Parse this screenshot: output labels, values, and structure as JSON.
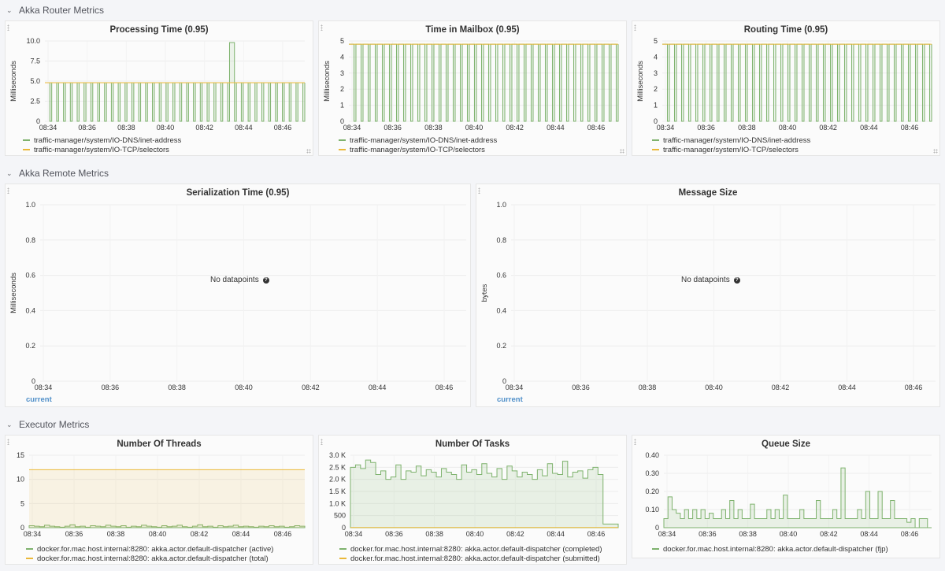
{
  "rows": [
    {
      "title": "Akka Router Metrics"
    },
    {
      "title": "Akka Remote Metrics"
    },
    {
      "title": "Executor Metrics"
    }
  ],
  "colors": {
    "green": "#7eb26d",
    "yellow": "#eab839",
    "link": "#4f8fc9"
  },
  "panels": {
    "processing": {
      "title": "Processing Time (0.95)",
      "ylabel": "Milliseconds",
      "legend": [
        "traffic-manager/system/IO-DNS/inet-address",
        "traffic-manager/system/IO-TCP/selectors"
      ]
    },
    "mailbox": {
      "title": "Time in Mailbox (0.95)",
      "ylabel": "Milliseconds",
      "legend": [
        "traffic-manager/system/IO-DNS/inet-address",
        "traffic-manager/system/IO-TCP/selectors"
      ]
    },
    "routing": {
      "title": "Routing Time (0.95)",
      "ylabel": "Milliseconds",
      "legend": [
        "traffic-manager/system/IO-DNS/inet-address",
        "traffic-manager/system/IO-TCP/selectors"
      ]
    },
    "serialization": {
      "title": "Serialization Time (0.95)",
      "ylabel": "Milliseconds",
      "no_data": "No datapoints",
      "current": "current"
    },
    "message_size": {
      "title": "Message Size",
      "ylabel": "bytes",
      "no_data": "No datapoints",
      "current": "current"
    },
    "threads": {
      "title": "Number Of Threads",
      "legend": [
        "docker.for.mac.host.internal:8280: akka.actor.default-dispatcher (active)",
        "docker.for.mac.host.internal:8280: akka.actor.default-dispatcher (total)"
      ]
    },
    "tasks": {
      "title": "Number Of Tasks",
      "legend": [
        "docker.for.mac.host.internal:8280: akka.actor.default-dispatcher (completed)",
        "docker.for.mac.host.internal:8280: akka.actor.default-dispatcher (submitted)"
      ]
    },
    "queue": {
      "title": "Queue Size",
      "legend": [
        "docker.for.mac.host.internal:8280: akka.actor.default-dispatcher (fjp)"
      ]
    }
  },
  "chart_data": [
    {
      "id": "processing",
      "type": "line",
      "x_ticks": [
        "08:34",
        "08:36",
        "08:38",
        "08:40",
        "08:42",
        "08:44",
        "08:46"
      ],
      "y_ticks": [
        "0",
        "2.5",
        "5.0",
        "7.5",
        "10.0"
      ],
      "ylim": [
        0,
        10
      ],
      "series": [
        {
          "name": "traffic-manager/system/IO-DNS/inet-address",
          "pattern": "square-wave",
          "high": 4.8,
          "low": 0,
          "periods": 38,
          "spike": {
            "period": 27,
            "value": 9.8
          }
        },
        {
          "name": "traffic-manager/system/IO-TCP/selectors",
          "pattern": "flat",
          "value": 4.8
        }
      ]
    },
    {
      "id": "mailbox",
      "type": "line",
      "x_ticks": [
        "08:34",
        "08:36",
        "08:38",
        "08:40",
        "08:42",
        "08:44",
        "08:46"
      ],
      "y_ticks": [
        "0",
        "1",
        "2",
        "3",
        "4",
        "5"
      ],
      "ylim": [
        0,
        5
      ],
      "series": [
        {
          "name": "traffic-manager/system/IO-DNS/inet-address",
          "pattern": "square-wave",
          "high": 4.8,
          "low": 0,
          "periods": 38
        },
        {
          "name": "traffic-manager/system/IO-TCP/selectors",
          "pattern": "flat",
          "value": 4.8
        }
      ]
    },
    {
      "id": "routing",
      "type": "line",
      "x_ticks": [
        "08:34",
        "08:36",
        "08:38",
        "08:40",
        "08:42",
        "08:44",
        "08:46"
      ],
      "y_ticks": [
        "0",
        "1",
        "2",
        "3",
        "4",
        "5"
      ],
      "ylim": [
        0,
        5
      ],
      "series": [
        {
          "name": "traffic-manager/system/IO-DNS/inet-address",
          "pattern": "square-wave",
          "high": 4.8,
          "low": 0,
          "periods": 38
        },
        {
          "name": "traffic-manager/system/IO-TCP/selectors",
          "pattern": "flat",
          "value": 4.8
        }
      ]
    },
    {
      "id": "serialization",
      "type": "line",
      "x_ticks": [
        "08:34",
        "08:36",
        "08:38",
        "08:40",
        "08:42",
        "08:44",
        "08:46"
      ],
      "y_ticks": [
        "0",
        "0.2",
        "0.4",
        "0.6",
        "0.8",
        "1.0"
      ],
      "ylim": [
        0,
        1
      ],
      "series": []
    },
    {
      "id": "message_size",
      "type": "line",
      "x_ticks": [
        "08:34",
        "08:36",
        "08:38",
        "08:40",
        "08:42",
        "08:44",
        "08:46"
      ],
      "y_ticks": [
        "0",
        "0.2",
        "0.4",
        "0.6",
        "0.8",
        "1.0"
      ],
      "ylim": [
        0,
        1
      ],
      "series": []
    },
    {
      "id": "threads",
      "type": "area",
      "x_ticks": [
        "08:34",
        "08:36",
        "08:38",
        "08:40",
        "08:42",
        "08:44",
        "08:46"
      ],
      "y_ticks": [
        "0",
        "5",
        "10",
        "15"
      ],
      "ylim": [
        0,
        15
      ],
      "series": [
        {
          "name": "active",
          "values": [
            0.4,
            0.3,
            0.2,
            0.5,
            0.3,
            0.2,
            0.1,
            0.3,
            0.6,
            0.2,
            0.3,
            0.1,
            0.4,
            0.3,
            0.2,
            0.5,
            0.3,
            0.2,
            0.4,
            0.1,
            0.3,
            0.2,
            0.5,
            0.3,
            0.2,
            0.1,
            0.4,
            0.2,
            0.3,
            0.5,
            0.2,
            0.1,
            0.3,
            0.6,
            0.2,
            0.3,
            0.1,
            0.4,
            0.2,
            0.3,
            0.5,
            0.2,
            0.3,
            0.2,
            0.1,
            0.3,
            0.2,
            0.4,
            0.2,
            0.3,
            0.1,
            0.2,
            0.4,
            0.3
          ]
        },
        {
          "name": "total",
          "value": 12
        }
      ]
    },
    {
      "id": "tasks",
      "type": "area",
      "x_ticks": [
        "08:34",
        "08:36",
        "08:38",
        "08:40",
        "08:42",
        "08:44",
        "08:46"
      ],
      "y_ticks": [
        "0",
        "500",
        "1.0 K",
        "1.5 K",
        "2.0 K",
        "2.5 K",
        "3.0 K"
      ],
      "ylim": [
        0,
        3000
      ],
      "series": [
        {
          "name": "completed",
          "values": [
            2500,
            2600,
            2450,
            2800,
            2700,
            2200,
            2350,
            2000,
            2100,
            2600,
            2000,
            2350,
            2300,
            2550,
            2150,
            2400,
            2300,
            2100,
            2450,
            2300,
            2200,
            2000,
            2600,
            2300,
            2400,
            2200,
            2650,
            2250,
            2100,
            2450,
            2000,
            2550,
            2350,
            2100,
            2300,
            2200,
            2000,
            2400,
            2150,
            2650,
            2250,
            2200,
            2750,
            2100,
            2300,
            2350,
            2050,
            2400,
            2500,
            2200,
            150,
            150,
            150
          ]
        },
        {
          "name": "submitted",
          "value": 10
        }
      ]
    },
    {
      "id": "queue",
      "type": "area",
      "x_ticks": [
        "08:34",
        "08:36",
        "08:38",
        "08:40",
        "08:42",
        "08:44",
        "08:46"
      ],
      "y_ticks": [
        "0",
        "0.10",
        "0.20",
        "0.30",
        "0.40"
      ],
      "ylim": [
        0,
        0.4
      ],
      "series": [
        {
          "name": "fjp",
          "values": [
            0.05,
            0.17,
            0.1,
            0.08,
            0.05,
            0.1,
            0.05,
            0.1,
            0.05,
            0.1,
            0.05,
            0.08,
            0.05,
            0.05,
            0.1,
            0.05,
            0.15,
            0.05,
            0.1,
            0.05,
            0.05,
            0.13,
            0.05,
            0.05,
            0.05,
            0.1,
            0.05,
            0.1,
            0.05,
            0.18,
            0.05,
            0.05,
            0.05,
            0.1,
            0.05,
            0.05,
            0.05,
            0.15,
            0.05,
            0.05,
            0.05,
            0.1,
            0.05,
            0.33,
            0.05,
            0.05,
            0.05,
            0.1,
            0.05,
            0.2,
            0.05,
            0.05,
            0.2,
            0.05,
            0.05,
            0.15,
            0.05,
            0.05,
            0.05,
            0.03,
            0.05,
            0.0,
            0.05,
            0.05,
            0.0
          ]
        }
      ]
    }
  ]
}
